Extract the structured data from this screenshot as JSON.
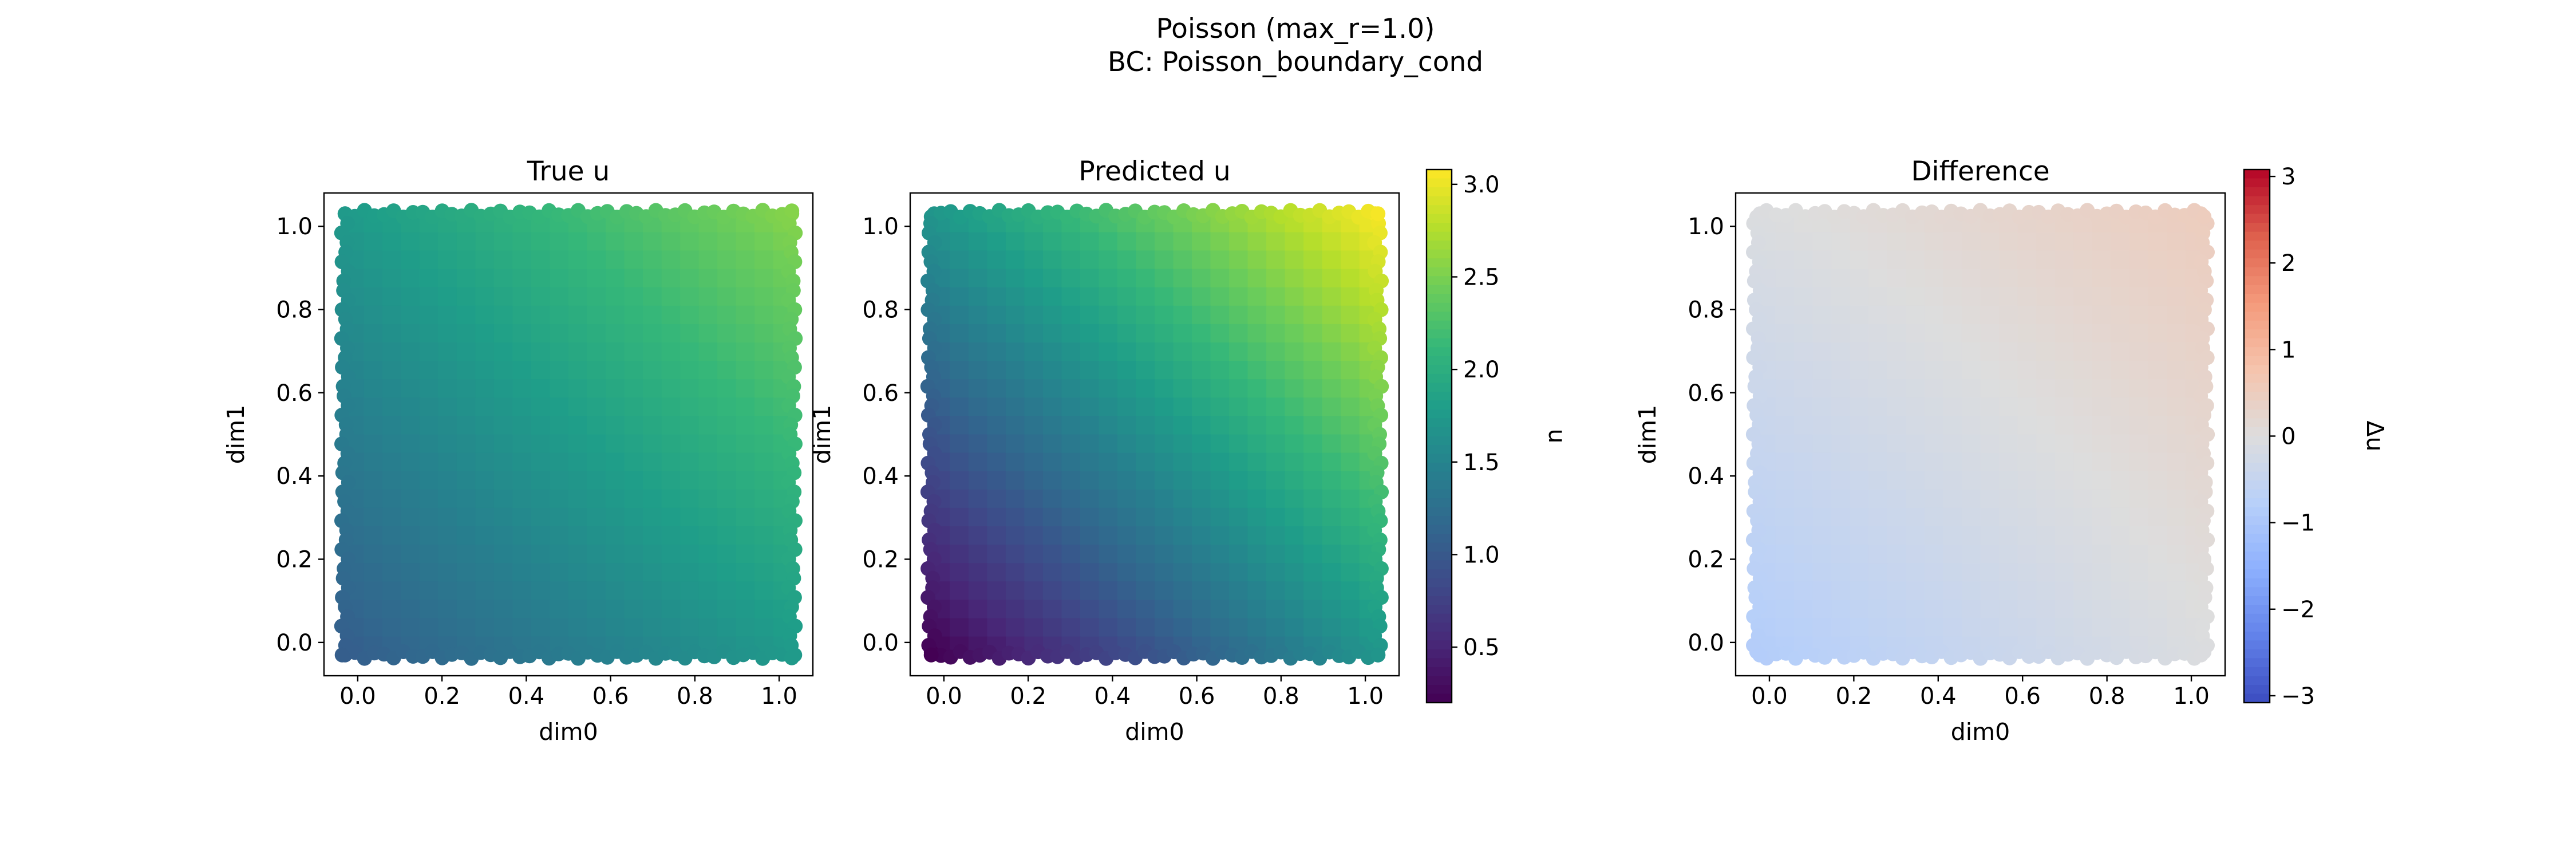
{
  "figure": {
    "title_line1": "Poisson (max_r=1.0)",
    "title_line2": "BC: Poisson_boundary_cond"
  },
  "chart_data": [
    {
      "type": "scatter",
      "title": "True u",
      "xlabel": "dim0",
      "ylabel": "dim1",
      "xlim": [
        -0.08,
        1.08
      ],
      "ylim": [
        -0.08,
        1.08
      ],
      "xticks": [
        "0.0",
        "0.2",
        "0.4",
        "0.6",
        "0.8",
        "1.0"
      ],
      "yticks": [
        "0.0",
        "0.2",
        "0.4",
        "0.6",
        "0.8",
        "1.0"
      ],
      "domain": {
        "x": [
          -0.03,
          1.03
        ],
        "y": [
          -0.03,
          1.03
        ]
      },
      "colormap": "viridis",
      "color_range": [
        0.2,
        3.08
      ],
      "corner_values": {
        "x0y0": 1.05,
        "x1y0": 1.75,
        "x0y1": 1.75,
        "x1y1": 2.55
      }
    },
    {
      "type": "scatter",
      "title": "Predicted u",
      "xlabel": "dim0",
      "ylabel": "dim1",
      "xlim": [
        -0.08,
        1.08
      ],
      "ylim": [
        -0.08,
        1.08
      ],
      "xticks": [
        "0.0",
        "0.2",
        "0.4",
        "0.6",
        "0.8",
        "1.0"
      ],
      "yticks": [
        "0.0",
        "0.2",
        "0.4",
        "0.6",
        "0.8",
        "1.0"
      ],
      "domain": {
        "x": [
          -0.03,
          1.03
        ],
        "y": [
          -0.03,
          1.03
        ]
      },
      "colormap": "viridis",
      "color_range": [
        0.2,
        3.08
      ],
      "corner_values": {
        "x0y0": 0.2,
        "x1y0": 1.7,
        "x0y1": 1.7,
        "x1y1": 3.05
      },
      "colorbar": {
        "label": "u",
        "ticks": [
          "0.5",
          "1.0",
          "1.5",
          "2.0",
          "2.5",
          "3.0"
        ],
        "tick_values": [
          0.5,
          1.0,
          1.5,
          2.0,
          2.5,
          3.0
        ]
      }
    },
    {
      "type": "scatter",
      "title": "Difference",
      "xlabel": "dim0",
      "ylabel": "dim1",
      "xlim": [
        -0.08,
        1.08
      ],
      "ylim": [
        -0.08,
        1.08
      ],
      "xticks": [
        "0.0",
        "0.2",
        "0.4",
        "0.6",
        "0.8",
        "1.0"
      ],
      "yticks": [
        "0.0",
        "0.2",
        "0.4",
        "0.6",
        "0.8",
        "1.0"
      ],
      "domain": {
        "x": [
          -0.03,
          1.03
        ],
        "y": [
          -0.03,
          1.03
        ]
      },
      "colormap": "coolwarm",
      "color_range": [
        -3.08,
        3.08
      ],
      "corner_values": {
        "x0y0": -0.85,
        "x1y0": -0.05,
        "x0y1": -0.05,
        "x1y1": 0.5
      },
      "colorbar": {
        "label": "Δu",
        "ticks": [
          "−3",
          "−2",
          "−1",
          "0",
          "1",
          "2",
          "3"
        ],
        "tick_values": [
          -3,
          -2,
          -1,
          0,
          1,
          2,
          3
        ]
      }
    }
  ]
}
